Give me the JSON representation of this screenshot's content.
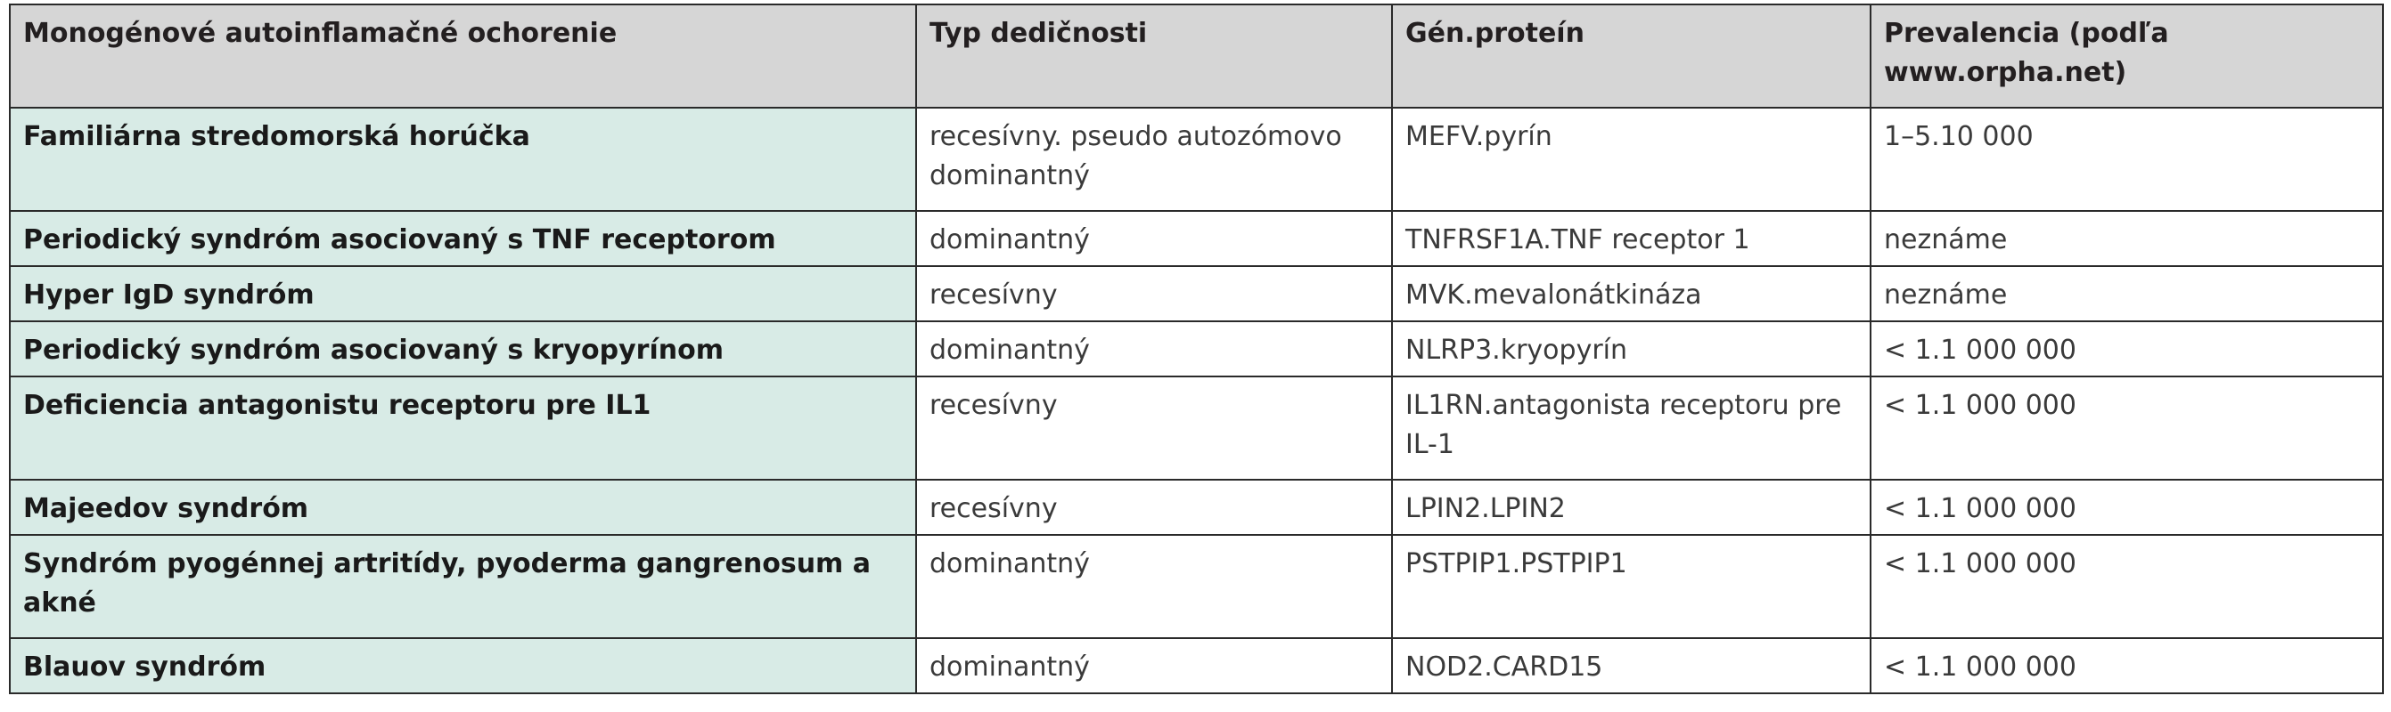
{
  "table": {
    "headers": [
      "Monogénové autoinflamačné ochorenie",
      "Typ dedičnosti",
      "Gén.proteín",
      "Prevalencia (podľa www.orpha.net)"
    ],
    "rows": [
      [
        "Familiárna stredomorská horúčka",
        "recesívny. pseudo autozómovo dominantný",
        "MEFV.pyrín",
        "1–5.10 000"
      ],
      [
        "Periodický syndróm asociovaný s TNF receptorom",
        "dominantný",
        "TNFRSF1A.TNF receptor 1",
        "neznáme"
      ],
      [
        "Hyper IgD syndróm",
        "recesívny",
        "MVK.mevalonátkináza",
        "neznáme"
      ],
      [
        "Periodický syndróm asociovaný s kryopyrínom",
        "dominantný",
        "NLRP3.kryopyrín",
        "< 1.1 000 000"
      ],
      [
        "Deficiencia antagonistu receptoru pre IL1",
        "recesívny",
        "IL1RN.antagonista receptoru pre IL-1",
        "< 1.1 000 000"
      ],
      [
        "Majeedov syndróm",
        "recesívny",
        "LPIN2.LPIN2",
        "< 1.1 000 000"
      ],
      [
        "Syndróm pyogénnej artritídy, pyoderma gangrenosum a akné",
        "dominantný",
        "PSTPIP1.PSTPIP1",
        "< 1.1 000 000"
      ],
      [
        "Blauov syndróm",
        "dominantný",
        "NOD2.CARD15",
        "< 1.1 000 000"
      ]
    ]
  },
  "colors": {
    "header_bg": "#d6d6d6",
    "disease_col_bg": "#d8ebe6",
    "border": "#2a2a2a"
  }
}
